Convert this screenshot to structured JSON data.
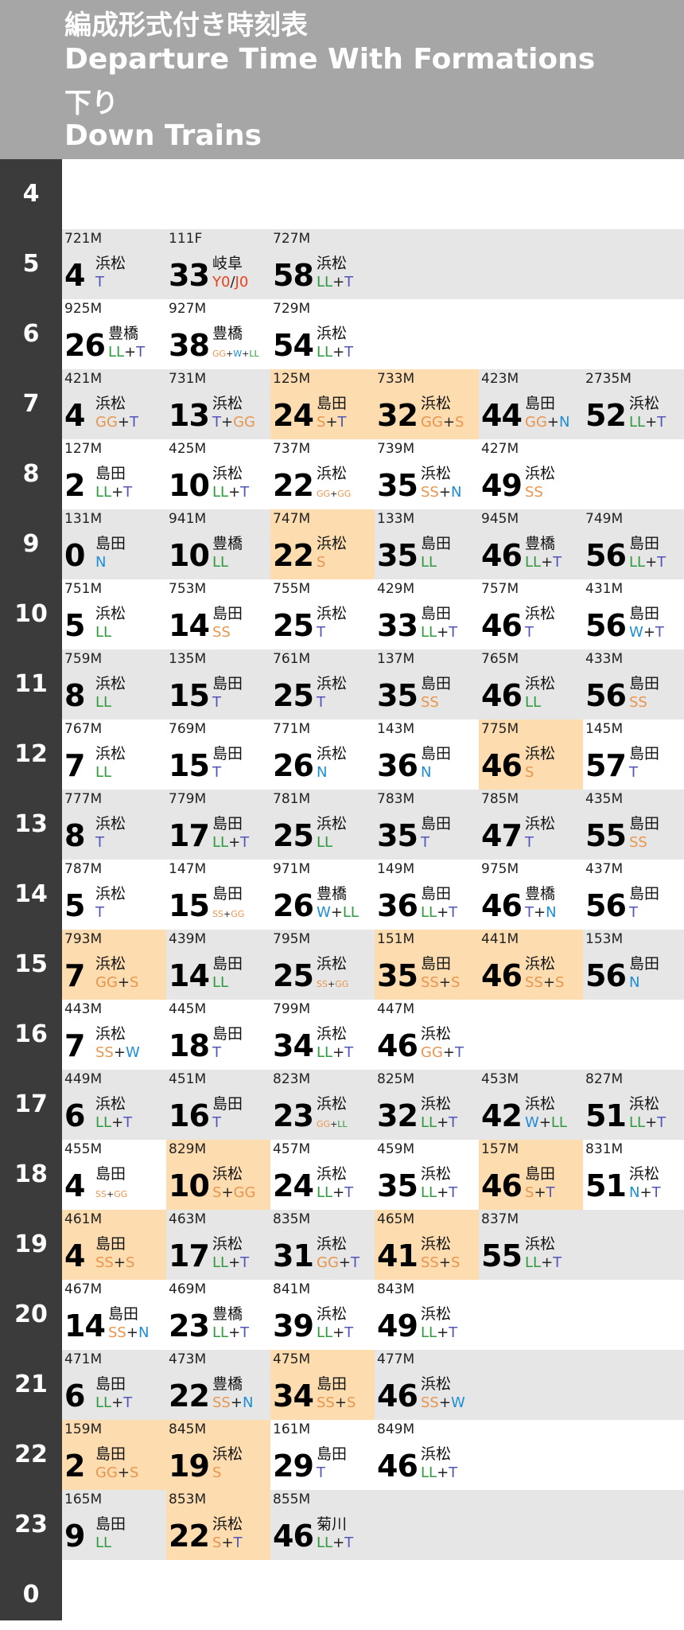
{
  "header": {
    "title_ja": "編成形式付き時刻表",
    "title_en": "Departure Time With Formations",
    "direction_ja": "下り",
    "direction_en": "Down Trains"
  },
  "colors": {
    "LL": "#2e9a3e",
    "T": "#5155b8",
    "GG": "#e8964e",
    "S": "#e8964e",
    "SS": "#e8964e",
    "N": "#1c8ed8",
    "W": "#1c8ed8",
    "Y0": "#e8421f",
    "J0": "#e8421f",
    "sep": "#222222",
    "highlight": "#fddcb0",
    "shaded": "#e6e6e6",
    "hour_col": "#3b3b3b",
    "header": "#a6a6a6"
  },
  "rows": [
    {
      "hour": "4",
      "trains": []
    },
    {
      "hour": "5",
      "trains": [
        {
          "no": "721M",
          "min": "4",
          "dest": "浜松",
          "form": [
            "T"
          ]
        },
        {
          "no": "111F",
          "min": "33",
          "dest": "岐阜",
          "form": [
            "Y0",
            "/",
            "J0"
          ]
        },
        {
          "no": "727M",
          "min": "58",
          "dest": "浜松",
          "form": [
            "LL",
            "+",
            "T"
          ]
        }
      ]
    },
    {
      "hour": "6",
      "trains": [
        {
          "no": "925M",
          "min": "26",
          "dest": "豊橋",
          "form": [
            "LL",
            "+",
            "T"
          ]
        },
        {
          "no": "927M",
          "min": "38",
          "dest": "豊橋",
          "form": [
            "GG",
            "+",
            "W",
            "+",
            "LL"
          ],
          "small": true
        },
        {
          "no": "729M",
          "min": "54",
          "dest": "浜松",
          "form": [
            "LL",
            "+",
            "T"
          ]
        }
      ]
    },
    {
      "hour": "7",
      "trains": [
        {
          "no": "421M",
          "min": "4",
          "dest": "浜松",
          "form": [
            "GG",
            "+",
            "T"
          ]
        },
        {
          "no": "731M",
          "min": "13",
          "dest": "浜松",
          "form": [
            "T",
            "+",
            "GG"
          ]
        },
        {
          "no": "125M",
          "min": "24",
          "dest": "島田",
          "form": [
            "S",
            "+",
            "T"
          ],
          "hl": true
        },
        {
          "no": "733M",
          "min": "32",
          "dest": "浜松",
          "form": [
            "GG",
            "+",
            "S"
          ],
          "hl": true
        },
        {
          "no": "423M",
          "min": "44",
          "dest": "島田",
          "form": [
            "GG",
            "+",
            "N"
          ]
        },
        {
          "no": "2735M",
          "min": "52",
          "dest": "浜松",
          "form": [
            "LL",
            "+",
            "T"
          ]
        }
      ]
    },
    {
      "hour": "8",
      "trains": [
        {
          "no": "127M",
          "min": "2",
          "dest": "島田",
          "form": [
            "LL",
            "+",
            "T"
          ]
        },
        {
          "no": "425M",
          "min": "10",
          "dest": "浜松",
          "form": [
            "LL",
            "+",
            "T"
          ]
        },
        {
          "no": "737M",
          "min": "22",
          "dest": "浜松",
          "form": [
            "GG",
            "+",
            "GG"
          ],
          "small": true
        },
        {
          "no": "739M",
          "min": "35",
          "dest": "浜松",
          "form": [
            "SS",
            "+",
            "N"
          ]
        },
        {
          "no": "427M",
          "min": "49",
          "dest": "浜松",
          "form": [
            "SS"
          ]
        }
      ]
    },
    {
      "hour": "9",
      "trains": [
        {
          "no": "131M",
          "min": "0",
          "dest": "島田",
          "form": [
            "N"
          ]
        },
        {
          "no": "941M",
          "min": "10",
          "dest": "豊橋",
          "form": [
            "LL"
          ]
        },
        {
          "no": "747M",
          "min": "22",
          "dest": "浜松",
          "form": [
            "S"
          ],
          "hl": true
        },
        {
          "no": "133M",
          "min": "35",
          "dest": "島田",
          "form": [
            "LL"
          ]
        },
        {
          "no": "945M",
          "min": "46",
          "dest": "豊橋",
          "form": [
            "LL",
            "+",
            "T"
          ]
        },
        {
          "no": "749M",
          "min": "56",
          "dest": "島田",
          "form": [
            "LL",
            "+",
            "T"
          ]
        }
      ]
    },
    {
      "hour": "10",
      "trains": [
        {
          "no": "751M",
          "min": "5",
          "dest": "浜松",
          "form": [
            "LL"
          ]
        },
        {
          "no": "753M",
          "min": "14",
          "dest": "島田",
          "form": [
            "SS"
          ]
        },
        {
          "no": "755M",
          "min": "25",
          "dest": "浜松",
          "form": [
            "T"
          ]
        },
        {
          "no": "429M",
          "min": "33",
          "dest": "島田",
          "form": [
            "LL",
            "+",
            "T"
          ]
        },
        {
          "no": "757M",
          "min": "46",
          "dest": "浜松",
          "form": [
            "T"
          ]
        },
        {
          "no": "431M",
          "min": "56",
          "dest": "島田",
          "form": [
            "W",
            "+",
            "T"
          ]
        }
      ]
    },
    {
      "hour": "11",
      "trains": [
        {
          "no": "759M",
          "min": "8",
          "dest": "浜松",
          "form": [
            "LL"
          ]
        },
        {
          "no": "135M",
          "min": "15",
          "dest": "島田",
          "form": [
            "T"
          ]
        },
        {
          "no": "761M",
          "min": "25",
          "dest": "浜松",
          "form": [
            "T"
          ]
        },
        {
          "no": "137M",
          "min": "35",
          "dest": "島田",
          "form": [
            "SS"
          ]
        },
        {
          "no": "765M",
          "min": "46",
          "dest": "浜松",
          "form": [
            "LL"
          ]
        },
        {
          "no": "433M",
          "min": "56",
          "dest": "島田",
          "form": [
            "SS"
          ]
        }
      ]
    },
    {
      "hour": "12",
      "trains": [
        {
          "no": "767M",
          "min": "7",
          "dest": "浜松",
          "form": [
            "LL"
          ]
        },
        {
          "no": "769M",
          "min": "15",
          "dest": "島田",
          "form": [
            "T"
          ]
        },
        {
          "no": "771M",
          "min": "26",
          "dest": "浜松",
          "form": [
            "N"
          ]
        },
        {
          "no": "143M",
          "min": "36",
          "dest": "島田",
          "form": [
            "N"
          ]
        },
        {
          "no": "775M",
          "min": "46",
          "dest": "浜松",
          "form": [
            "S"
          ],
          "hl": true
        },
        {
          "no": "145M",
          "min": "57",
          "dest": "島田",
          "form": [
            "T"
          ]
        }
      ]
    },
    {
      "hour": "13",
      "trains": [
        {
          "no": "777M",
          "min": "8",
          "dest": "浜松",
          "form": [
            "T"
          ]
        },
        {
          "no": "779M",
          "min": "17",
          "dest": "島田",
          "form": [
            "LL",
            "+",
            "T"
          ]
        },
        {
          "no": "781M",
          "min": "25",
          "dest": "浜松",
          "form": [
            "LL"
          ]
        },
        {
          "no": "783M",
          "min": "35",
          "dest": "島田",
          "form": [
            "T"
          ]
        },
        {
          "no": "785M",
          "min": "47",
          "dest": "浜松",
          "form": [
            "T"
          ]
        },
        {
          "no": "435M",
          "min": "55",
          "dest": "島田",
          "form": [
            "SS"
          ]
        }
      ]
    },
    {
      "hour": "14",
      "trains": [
        {
          "no": "787M",
          "min": "5",
          "dest": "浜松",
          "form": [
            "T"
          ]
        },
        {
          "no": "147M",
          "min": "15",
          "dest": "島田",
          "form": [
            "SS",
            "+",
            "GG"
          ],
          "small": true
        },
        {
          "no": "971M",
          "min": "26",
          "dest": "豊橋",
          "form": [
            "W",
            "+",
            "LL"
          ]
        },
        {
          "no": "149M",
          "min": "36",
          "dest": "島田",
          "form": [
            "LL",
            "+",
            "T"
          ]
        },
        {
          "no": "975M",
          "min": "46",
          "dest": "豊橋",
          "form": [
            "T",
            "+",
            "N"
          ]
        },
        {
          "no": "437M",
          "min": "56",
          "dest": "島田",
          "form": [
            "T"
          ]
        }
      ]
    },
    {
      "hour": "15",
      "trains": [
        {
          "no": "793M",
          "min": "7",
          "dest": "浜松",
          "form": [
            "GG",
            "+",
            "S"
          ],
          "hl": true
        },
        {
          "no": "439M",
          "min": "14",
          "dest": "島田",
          "form": [
            "LL"
          ]
        },
        {
          "no": "795M",
          "min": "25",
          "dest": "浜松",
          "form": [
            "SS",
            "+",
            "GG"
          ],
          "small": true
        },
        {
          "no": "151M",
          "min": "35",
          "dest": "島田",
          "form": [
            "SS",
            "+",
            "S"
          ],
          "hl": true
        },
        {
          "no": "441M",
          "min": "46",
          "dest": "浜松",
          "form": [
            "SS",
            "+",
            "S"
          ],
          "hl": true
        },
        {
          "no": "153M",
          "min": "56",
          "dest": "島田",
          "form": [
            "N"
          ]
        }
      ]
    },
    {
      "hour": "16",
      "trains": [
        {
          "no": "443M",
          "min": "7",
          "dest": "浜松",
          "form": [
            "SS",
            "+",
            "W"
          ]
        },
        {
          "no": "445M",
          "min": "18",
          "dest": "島田",
          "form": [
            "T"
          ]
        },
        {
          "no": "799M",
          "min": "34",
          "dest": "浜松",
          "form": [
            "LL",
            "+",
            "T"
          ]
        },
        {
          "no": "447M",
          "min": "46",
          "dest": "浜松",
          "form": [
            "GG",
            "+",
            "T"
          ]
        }
      ]
    },
    {
      "hour": "17",
      "trains": [
        {
          "no": "449M",
          "min": "6",
          "dest": "浜松",
          "form": [
            "LL",
            "+",
            "T"
          ]
        },
        {
          "no": "451M",
          "min": "16",
          "dest": "島田",
          "form": [
            "T"
          ]
        },
        {
          "no": "823M",
          "min": "23",
          "dest": "浜松",
          "form": [
            "GG",
            "+",
            "LL"
          ],
          "small": true
        },
        {
          "no": "825M",
          "min": "32",
          "dest": "浜松",
          "form": [
            "LL",
            "+",
            "T"
          ]
        },
        {
          "no": "453M",
          "min": "42",
          "dest": "浜松",
          "form": [
            "W",
            "+",
            "LL"
          ]
        },
        {
          "no": "827M",
          "min": "51",
          "dest": "浜松",
          "form": [
            "LL",
            "+",
            "T"
          ]
        }
      ]
    },
    {
      "hour": "18",
      "trains": [
        {
          "no": "455M",
          "min": "4",
          "dest": "島田",
          "form": [
            "SS",
            "+",
            "GG"
          ],
          "small": true
        },
        {
          "no": "829M",
          "min": "10",
          "dest": "浜松",
          "form": [
            "S",
            "+",
            "GG"
          ],
          "hl": true
        },
        {
          "no": "457M",
          "min": "24",
          "dest": "浜松",
          "form": [
            "LL",
            "+",
            "T"
          ]
        },
        {
          "no": "459M",
          "min": "35",
          "dest": "浜松",
          "form": [
            "LL",
            "+",
            "T"
          ]
        },
        {
          "no": "157M",
          "min": "46",
          "dest": "島田",
          "form": [
            "S",
            "+",
            "T"
          ],
          "hl": true
        },
        {
          "no": "831M",
          "min": "51",
          "dest": "浜松",
          "form": [
            "N",
            "+",
            "T"
          ]
        }
      ]
    },
    {
      "hour": "19",
      "trains": [
        {
          "no": "461M",
          "min": "4",
          "dest": "島田",
          "form": [
            "SS",
            "+",
            "S"
          ],
          "hl": true
        },
        {
          "no": "463M",
          "min": "17",
          "dest": "浜松",
          "form": [
            "LL",
            "+",
            "T"
          ]
        },
        {
          "no": "835M",
          "min": "31",
          "dest": "浜松",
          "form": [
            "GG",
            "+",
            "T"
          ]
        },
        {
          "no": "465M",
          "min": "41",
          "dest": "浜松",
          "form": [
            "SS",
            "+",
            "S"
          ],
          "hl": true
        },
        {
          "no": "837M",
          "min": "55",
          "dest": "浜松",
          "form": [
            "LL",
            "+",
            "T"
          ]
        }
      ]
    },
    {
      "hour": "20",
      "trains": [
        {
          "no": "467M",
          "min": "14",
          "dest": "島田",
          "form": [
            "SS",
            "+",
            "N"
          ]
        },
        {
          "no": "469M",
          "min": "23",
          "dest": "豊橋",
          "form": [
            "LL",
            "+",
            "T"
          ]
        },
        {
          "no": "841M",
          "min": "39",
          "dest": "浜松",
          "form": [
            "LL",
            "+",
            "T"
          ]
        },
        {
          "no": "843M",
          "min": "49",
          "dest": "浜松",
          "form": [
            "LL",
            "+",
            "T"
          ]
        }
      ]
    },
    {
      "hour": "21",
      "trains": [
        {
          "no": "471M",
          "min": "6",
          "dest": "島田",
          "form": [
            "LL",
            "+",
            "T"
          ]
        },
        {
          "no": "473M",
          "min": "22",
          "dest": "豊橋",
          "form": [
            "SS",
            "+",
            "N"
          ]
        },
        {
          "no": "475M",
          "min": "34",
          "dest": "島田",
          "form": [
            "SS",
            "+",
            "S"
          ],
          "hl": true
        },
        {
          "no": "477M",
          "min": "46",
          "dest": "浜松",
          "form": [
            "SS",
            "+",
            "W"
          ]
        }
      ]
    },
    {
      "hour": "22",
      "trains": [
        {
          "no": "159M",
          "min": "2",
          "dest": "島田",
          "form": [
            "GG",
            "+",
            "S"
          ],
          "hl": true
        },
        {
          "no": "845M",
          "min": "19",
          "dest": "浜松",
          "form": [
            "S"
          ],
          "hl": true
        },
        {
          "no": "161M",
          "min": "29",
          "dest": "島田",
          "form": [
            "T"
          ]
        },
        {
          "no": "849M",
          "min": "46",
          "dest": "浜松",
          "form": [
            "LL",
            "+",
            "T"
          ]
        }
      ]
    },
    {
      "hour": "23",
      "trains": [
        {
          "no": "165M",
          "min": "9",
          "dest": "島田",
          "form": [
            "LL"
          ]
        },
        {
          "no": "853M",
          "min": "22",
          "dest": "浜松",
          "form": [
            "S",
            "+",
            "T"
          ],
          "hl": true
        },
        {
          "no": "855M",
          "min": "46",
          "dest": "菊川",
          "form": [
            "LL",
            "+",
            "T"
          ]
        }
      ]
    },
    {
      "hour": "0",
      "trains": []
    }
  ]
}
